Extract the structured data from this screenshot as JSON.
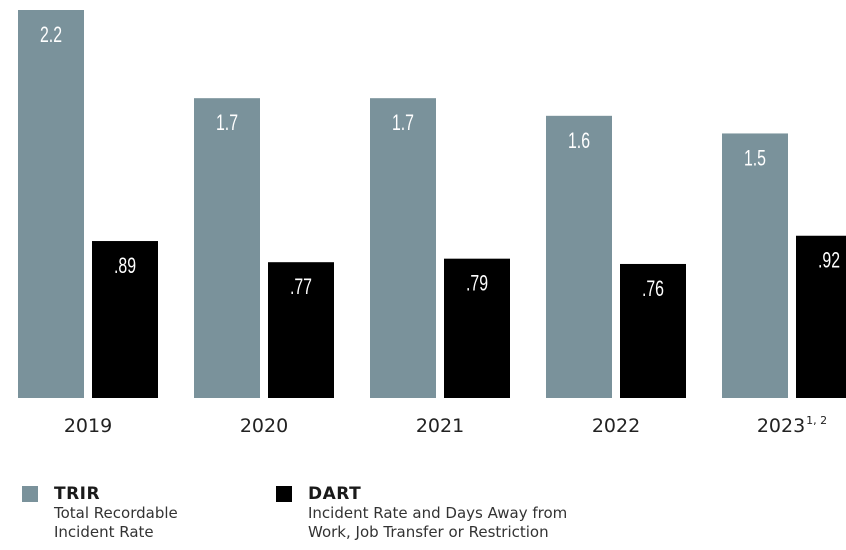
{
  "chart_data": {
    "type": "bar",
    "categories": [
      "2019",
      "2020",
      "2021",
      "2022",
      "2023"
    ],
    "category_superscripts": [
      "",
      "",
      "",
      "",
      "1, 2"
    ],
    "series": [
      {
        "name": "TRIR",
        "description": "Total Recordable Incident Rate",
        "color": "#7a929b",
        "values": [
          2.2,
          1.7,
          1.7,
          1.6,
          1.5
        ],
        "labels": [
          "2.2",
          "1.7",
          "1.7",
          "1.6",
          "1.5"
        ]
      },
      {
        "name": "DART",
        "description": "Incident Rate and Days Away from Work, Job Transfer or Restriction",
        "color": "#000000",
        "values": [
          0.89,
          0.77,
          0.79,
          0.76,
          0.92
        ],
        "labels": [
          ".89",
          ".77",
          ".79",
          ".76",
          ".92"
        ]
      }
    ],
    "ylim": [
      0,
      2.2
    ],
    "grid": false,
    "legend_position": "bottom"
  },
  "legend": {
    "trir_title": "TRIR",
    "trir_desc_line1": "Total Recordable",
    "trir_desc_line2": "Incident Rate",
    "dart_title": "DART",
    "dart_desc_line1": "Incident Rate and Days Away from",
    "dart_desc_line2": "Work, Job Transfer or Restriction"
  }
}
